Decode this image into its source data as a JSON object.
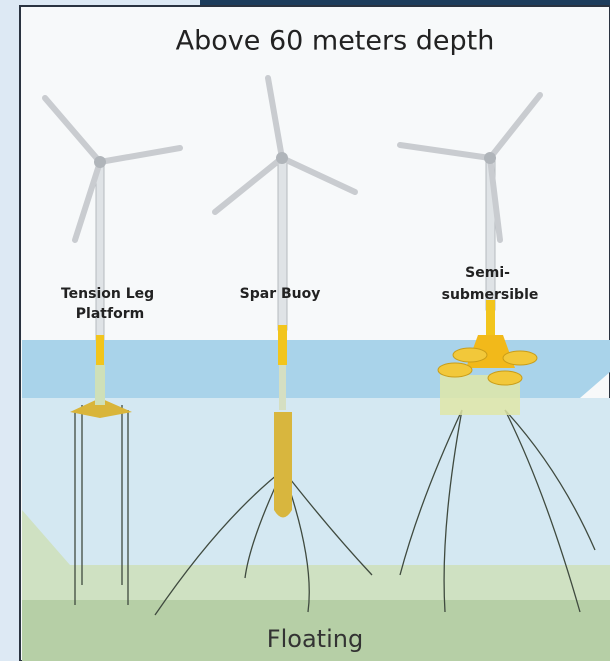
{
  "title": "Above 60 meters depth",
  "turbines": [
    {
      "label_lines": [
        "Tension Leg",
        "Platform"
      ]
    },
    {
      "label_lines": [
        "Spar Buoy"
      ]
    },
    {
      "label_lines": [
        "Semi-",
        "submersible"
      ]
    }
  ],
  "footer": "Floating"
}
